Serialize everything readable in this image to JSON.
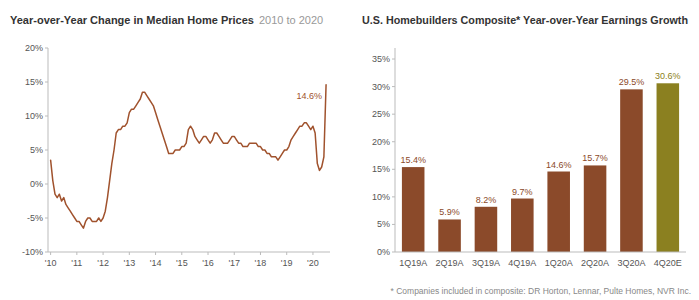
{
  "chart_data": [
    {
      "type": "line",
      "title": "Year-over-Year Change in Median Home Prices",
      "subtitle": "2010 to 2020",
      "color": "#A0522D",
      "x": [
        2010.0,
        2010.083,
        2010.167,
        2010.25,
        2010.333,
        2010.417,
        2010.5,
        2010.583,
        2010.667,
        2010.75,
        2010.833,
        2010.917,
        2011.0,
        2011.083,
        2011.167,
        2011.25,
        2011.333,
        2011.417,
        2011.5,
        2011.583,
        2011.667,
        2011.75,
        2011.833,
        2011.917,
        2012.0,
        2012.083,
        2012.167,
        2012.25,
        2012.333,
        2012.417,
        2012.5,
        2012.583,
        2012.667,
        2012.75,
        2012.833,
        2012.917,
        2013.0,
        2013.083,
        2013.167,
        2013.25,
        2013.333,
        2013.417,
        2013.5,
        2013.583,
        2013.667,
        2013.75,
        2013.833,
        2013.917,
        2014.0,
        2014.083,
        2014.167,
        2014.25,
        2014.333,
        2014.417,
        2014.5,
        2014.583,
        2014.667,
        2014.75,
        2014.833,
        2014.917,
        2015.0,
        2015.083,
        2015.167,
        2015.25,
        2015.333,
        2015.417,
        2015.5,
        2015.583,
        2015.667,
        2015.75,
        2015.833,
        2015.917,
        2016.0,
        2016.083,
        2016.167,
        2016.25,
        2016.333,
        2016.417,
        2016.5,
        2016.583,
        2016.667,
        2016.75,
        2016.833,
        2016.917,
        2017.0,
        2017.083,
        2017.167,
        2017.25,
        2017.333,
        2017.417,
        2017.5,
        2017.583,
        2017.667,
        2017.75,
        2017.833,
        2017.917,
        2018.0,
        2018.083,
        2018.167,
        2018.25,
        2018.333,
        2018.417,
        2018.5,
        2018.583,
        2018.667,
        2018.75,
        2018.833,
        2018.917,
        2019.0,
        2019.083,
        2019.167,
        2019.25,
        2019.333,
        2019.417,
        2019.5,
        2019.583,
        2019.667,
        2019.75,
        2019.833,
        2019.917,
        2020.0,
        2020.083,
        2020.167,
        2020.25,
        2020.333,
        2020.417,
        2020.5
      ],
      "values": [
        3.5,
        0.5,
        -1.5,
        -2.0,
        -1.5,
        -2.5,
        -2.0,
        -3.0,
        -3.5,
        -4.0,
        -4.5,
        -5.0,
        -5.5,
        -5.5,
        -6.0,
        -6.5,
        -5.5,
        -5.0,
        -5.0,
        -5.5,
        -5.5,
        -5.5,
        -5.0,
        -5.5,
        -5.0,
        -4.0,
        -2.0,
        0.5,
        3.0,
        5.0,
        7.5,
        8.0,
        8.0,
        8.5,
        8.5,
        9.0,
        10.5,
        11.0,
        11.0,
        11.5,
        12.0,
        12.5,
        13.5,
        13.5,
        13.0,
        12.5,
        12.0,
        11.5,
        10.5,
        9.5,
        8.5,
        7.5,
        6.5,
        5.5,
        4.5,
        4.5,
        4.5,
        5.0,
        5.0,
        5.0,
        5.5,
        5.5,
        6.0,
        8.0,
        8.5,
        8.0,
        7.0,
        6.5,
        6.0,
        6.5,
        7.0,
        7.0,
        6.5,
        6.0,
        6.5,
        7.5,
        7.5,
        7.0,
        6.5,
        6.0,
        6.0,
        6.0,
        6.5,
        7.0,
        7.0,
        6.5,
        6.0,
        6.0,
        5.5,
        5.5,
        5.5,
        6.0,
        6.0,
        6.0,
        6.0,
        5.5,
        5.5,
        5.0,
        5.0,
        4.5,
        4.5,
        4.0,
        4.0,
        4.0,
        3.5,
        4.0,
        4.5,
        5.0,
        5.0,
        5.5,
        6.5,
        7.0,
        7.5,
        8.0,
        8.5,
        8.5,
        9.0,
        9.0,
        8.5,
        8.0,
        8.5,
        7.5,
        3.0,
        2.0,
        2.5,
        4.0,
        14.6
      ],
      "xlim": [
        2009.9,
        2020.65
      ],
      "xticks": [
        {
          "value": 2010,
          "label": "'10"
        },
        {
          "value": 2011,
          "label": "'11"
        },
        {
          "value": 2012,
          "label": "'12"
        },
        {
          "value": 2013,
          "label": "'13"
        },
        {
          "value": 2014,
          "label": "'14"
        },
        {
          "value": 2015,
          "label": "'15"
        },
        {
          "value": 2016,
          "label": "'16"
        },
        {
          "value": 2017,
          "label": "'17"
        },
        {
          "value": 2018,
          "label": "'18"
        },
        {
          "value": 2019,
          "label": "'19"
        },
        {
          "value": 2020,
          "label": "'20"
        }
      ],
      "ylim": [
        -10,
        20
      ],
      "yticks": [
        {
          "value": -10,
          "label": "-10%"
        },
        {
          "value": -5,
          "label": "-5%"
        },
        {
          "value": 0,
          "label": "0%"
        },
        {
          "value": 5,
          "label": "5%"
        },
        {
          "value": 10,
          "label": "10%"
        },
        {
          "value": 15,
          "label": "15%"
        },
        {
          "value": 20,
          "label": "20%"
        }
      ],
      "annotations": [
        {
          "text": "14.6%",
          "x": 2020.5,
          "y": 14.6
        }
      ],
      "grid": false
    },
    {
      "type": "bar",
      "title": "U.S. Homebuilders Composite* Year-over-Year Earnings Growth",
      "categories": [
        "1Q19A",
        "2Q19A",
        "3Q19A",
        "4Q19A",
        "1Q20A",
        "2Q20A",
        "3Q20A",
        "4Q20E"
      ],
      "values": [
        15.4,
        5.9,
        8.2,
        9.7,
        14.6,
        15.7,
        29.5,
        30.6
      ],
      "value_labels": [
        "15.4%",
        "5.9%",
        "8.2%",
        "9.7%",
        "14.6%",
        "15.7%",
        "29.5%",
        "30.6%"
      ],
      "data_labels": true,
      "colors": [
        "#8B4A2A",
        "#8B4A2A",
        "#8B4A2A",
        "#8B4A2A",
        "#8B4A2A",
        "#8B4A2A",
        "#8B4A2A",
        "#8B8020"
      ],
      "ylim": [
        0,
        37
      ],
      "yticks": [
        {
          "value": 0,
          "label": "0%"
        },
        {
          "value": 5,
          "label": "5%"
        },
        {
          "value": 10,
          "label": "10%"
        },
        {
          "value": 15,
          "label": "15%"
        },
        {
          "value": 20,
          "label": "20%"
        },
        {
          "value": 25,
          "label": "25%"
        },
        {
          "value": 30,
          "label": "30%"
        },
        {
          "value": 35,
          "label": "35%"
        }
      ],
      "footnote": "* Companies included in composite: DR Horton, Lennar, Pulte Homes, NVR Inc.",
      "grid": false
    }
  ]
}
